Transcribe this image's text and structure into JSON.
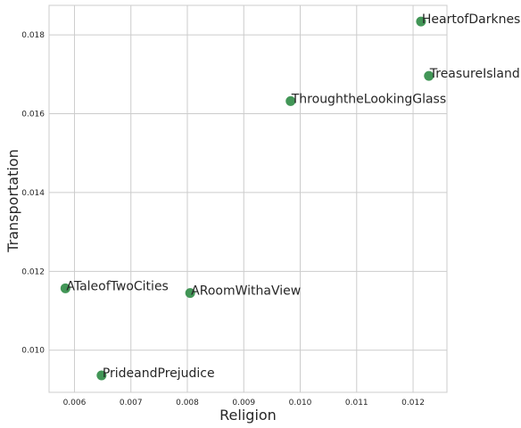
{
  "chart_data": {
    "type": "scatter",
    "title": "",
    "xlabel": "Religion",
    "ylabel": "Transportation",
    "xlim": [
      0.00555,
      0.0126
    ],
    "ylim": [
      0.00893,
      0.01875
    ],
    "x_ticks": [
      0.006,
      0.007,
      0.008,
      0.009,
      0.01,
      0.011,
      0.012
    ],
    "x_tick_labels": [
      "0.006",
      "0.007",
      "0.008",
      "0.009",
      "0.010",
      "0.011",
      "0.012"
    ],
    "y_ticks": [
      0.01,
      0.012,
      0.014,
      0.016,
      0.018
    ],
    "y_tick_labels": [
      "0.010",
      "0.012",
      "0.014",
      "0.016",
      "0.018"
    ],
    "grid": true,
    "point_color": "#2e8b45",
    "points": [
      {
        "label": "HeartofDarkness",
        "x": 0.01214,
        "y": 0.01834
      },
      {
        "label": "TreasureIsland",
        "x": 0.01228,
        "y": 0.01696
      },
      {
        "label": "ThroughtheLookingGlass",
        "x": 0.00983,
        "y": 0.01632
      },
      {
        "label": "ATaleofTwoCities",
        "x": 0.00584,
        "y": 0.01157
      },
      {
        "label": "ARoomWithaView",
        "x": 0.00805,
        "y": 0.01145
      },
      {
        "label": "PrideandPrejudice",
        "x": 0.00648,
        "y": 0.00936
      }
    ]
  }
}
